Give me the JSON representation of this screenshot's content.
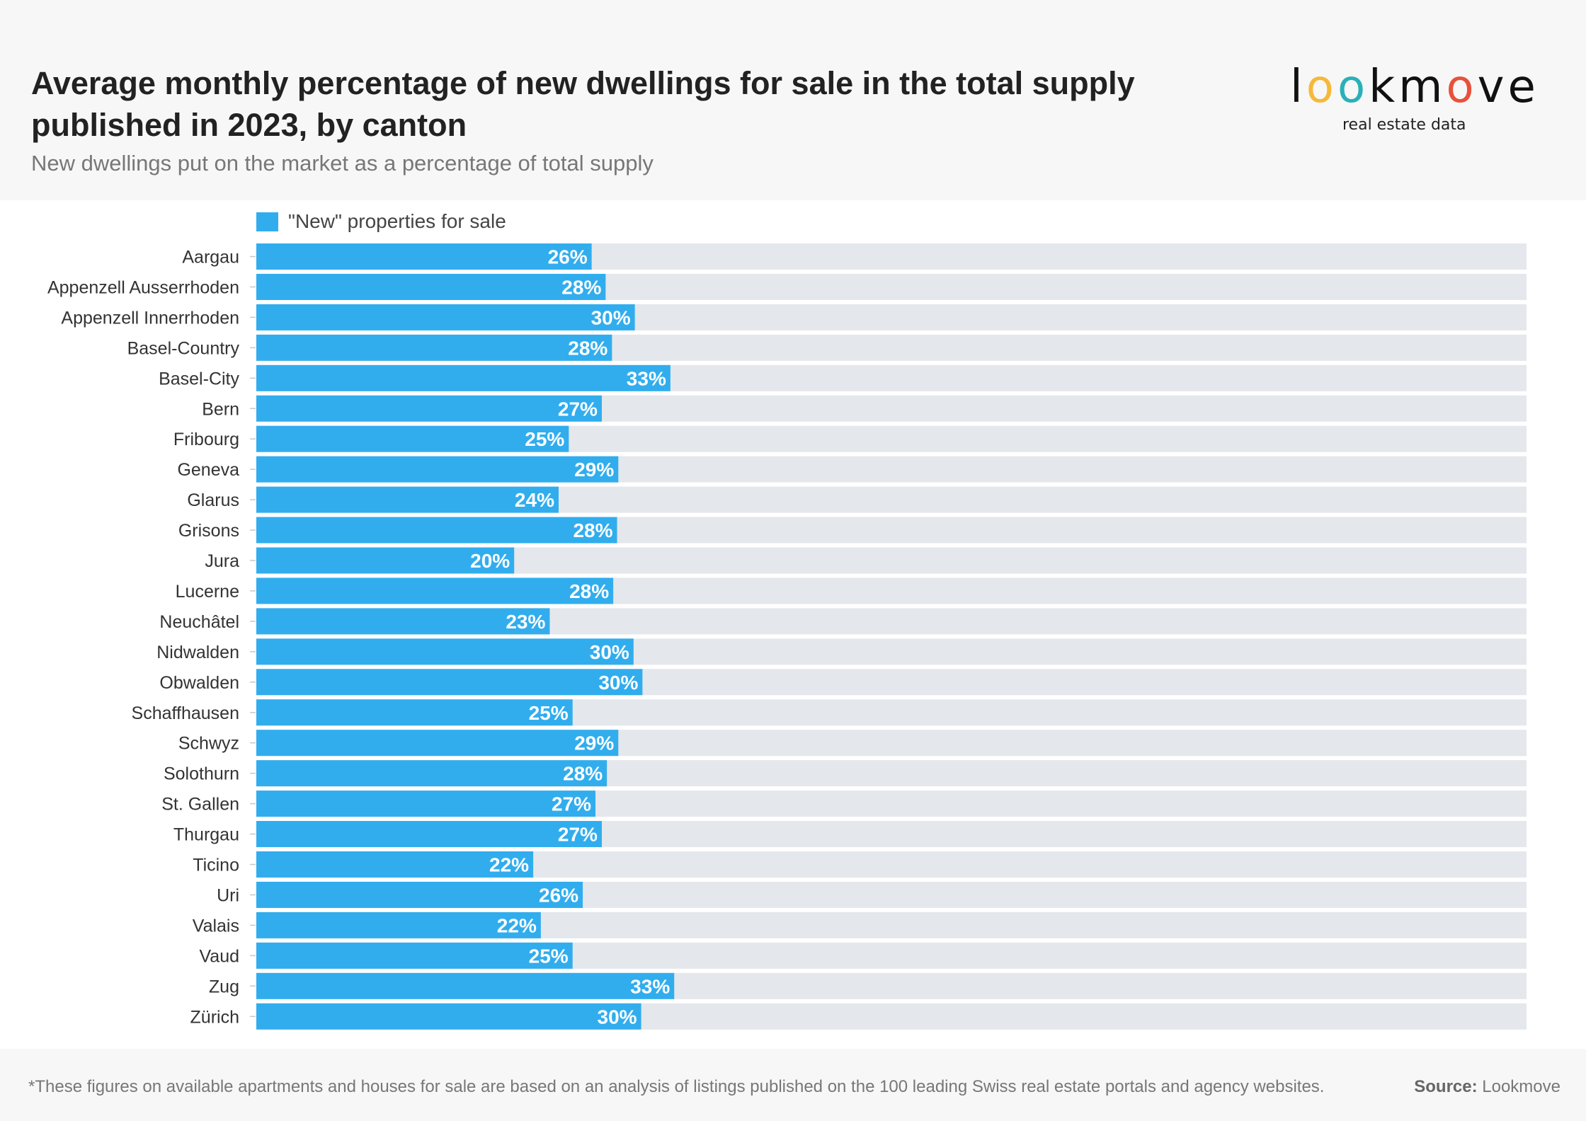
{
  "header": {
    "title": "Average monthly percentage of new dwellings for sale in the total supply published in 2023, by canton",
    "subtitle": "New dwellings put on the market as a percentage of total supply"
  },
  "logo": {
    "letters": [
      "l",
      "o",
      "o",
      "k",
      "m",
      "o",
      "v",
      "e"
    ],
    "letter_colors": [
      "#111111",
      "#f5b93a",
      "#2ab0b8",
      "#111111",
      "#111111",
      "#e8513a",
      "#111111",
      "#111111"
    ],
    "tagline": "real estate data"
  },
  "footer": {
    "footnote": "*These figures on available apartments and houses for sale are based on an analysis of listings published on the 100 leading Swiss real estate portals and agency websites.",
    "source_label": "Source:",
    "source_value": "Lookmove"
  },
  "colors": {
    "bar": "#31adee",
    "track": "#e4e7eb",
    "label": "#ffffff"
  },
  "chart_data": {
    "type": "bar",
    "orientation": "horizontal",
    "title": "Average monthly percentage of new dwellings for sale in the total supply published in 2023, by canton",
    "subtitle": "New dwellings put on the market as a percentage of total supply",
    "xlim": [
      0,
      100
    ],
    "grid": false,
    "legend_position": "top-left",
    "categories": [
      "Aargau",
      "Appenzell Ausserrhoden",
      "Appenzell Innerrhoden",
      "Basel-Country",
      "Basel-City",
      "Bern",
      "Fribourg",
      "Geneva",
      "Glarus",
      "Grisons",
      "Jura",
      "Lucerne",
      "Neuchâtel",
      "Nidwalden",
      "Obwalden",
      "Schaffhausen",
      "Schwyz",
      "Solothurn",
      "St. Gallen",
      "Thurgau",
      "Ticino",
      "Uri",
      "Valais",
      "Vaud",
      "Zug",
      "Zürich"
    ],
    "series": [
      {
        "name": "\"New\" properties for sale",
        "values": [
          26.4,
          27.5,
          29.8,
          28.0,
          32.6,
          27.2,
          24.6,
          28.5,
          23.8,
          28.4,
          20.3,
          28.1,
          23.1,
          29.7,
          30.4,
          24.9,
          28.5,
          27.6,
          26.7,
          27.2,
          21.8,
          25.7,
          22.4,
          24.9,
          32.9,
          30.3
        ],
        "labels": [
          "26%",
          "28%",
          "30%",
          "28%",
          "33%",
          "27%",
          "25%",
          "29%",
          "24%",
          "28%",
          "20%",
          "28%",
          "23%",
          "30%",
          "30%",
          "25%",
          "29%",
          "28%",
          "27%",
          "27%",
          "22%",
          "26%",
          "22%",
          "25%",
          "33%",
          "30%"
        ]
      }
    ]
  }
}
